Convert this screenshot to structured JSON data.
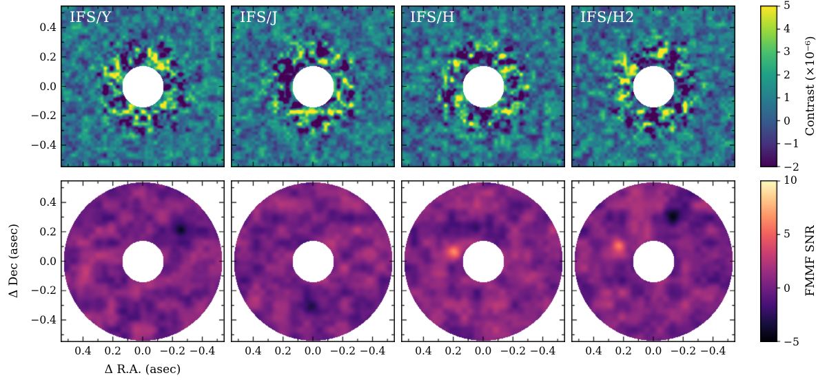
{
  "chart_data": {
    "type": "heatmap",
    "layout": {
      "rows": 2,
      "cols": 4,
      "grid": "2x4 panels + 2 colorbars"
    },
    "x_axis": {
      "label": "Δ R.A. (asec)",
      "tick_values": [
        0.4,
        0.2,
        0.0,
        -0.2,
        -0.4
      ],
      "tick_labels": [
        "0.4",
        "0.2",
        "0.0",
        "−0.2",
        "−0.4"
      ],
      "minor_tick_values": [
        0.5,
        0.3,
        0.1,
        -0.1,
        -0.3,
        -0.5
      ],
      "range": [
        0.55,
        -0.55
      ],
      "inverted": true
    },
    "y_axis": {
      "label": "Δ Dec (asec)",
      "tick_values": [
        0.4,
        0.2,
        0.0,
        -0.2,
        -0.4
      ],
      "tick_labels": [
        "0.4",
        "0.2",
        "0.0",
        "−0.2",
        "−0.4"
      ],
      "minor_tick_values": [
        0.5,
        0.3,
        0.1,
        -0.1,
        -0.3,
        -0.5
      ],
      "range": [
        -0.55,
        0.55
      ]
    },
    "rows": [
      {
        "name": "contrast-residual-maps",
        "panels": [
          "IFS/Y",
          "IFS/J",
          "IFS/H",
          "IFS/H2"
        ],
        "colormap": "viridis",
        "content": "residual speckle-noise contrast maps with white central occulter",
        "colorbar": {
          "label": "Contrast (×10⁻⁶)",
          "range": [
            -2,
            5
          ],
          "tick_values": [
            5,
            4,
            3,
            2,
            1,
            0,
            -1,
            -2
          ],
          "tick_labels": [
            "5",
            "4",
            "3",
            "2",
            "1",
            "0",
            "−1",
            "−2"
          ]
        }
      },
      {
        "name": "fmmf-snr-maps",
        "panels": [
          "",
          "",
          "",
          ""
        ],
        "colormap": "magma",
        "content": "matched-filter SNR maps restricted to an annulus (white inner circle and outer corners)",
        "colorbar": {
          "label": "FMMF SNR",
          "range": [
            -5,
            10
          ],
          "tick_values": [
            10,
            5,
            0,
            -5
          ],
          "tick_labels": [
            "10",
            "5",
            "0",
            "−5"
          ]
        }
      }
    ],
    "colormaps": {
      "viridis": [
        "#440154",
        "#46327e",
        "#365c8d",
        "#277f8e",
        "#1fa187",
        "#4ac16d",
        "#a0da39",
        "#fde725"
      ],
      "magma": [
        "#000004",
        "#180f3e",
        "#451077",
        "#721f81",
        "#9f2f7f",
        "#cd4071",
        "#f1605d",
        "#fd9567",
        "#feca8d",
        "#fcfdbf"
      ]
    }
  }
}
